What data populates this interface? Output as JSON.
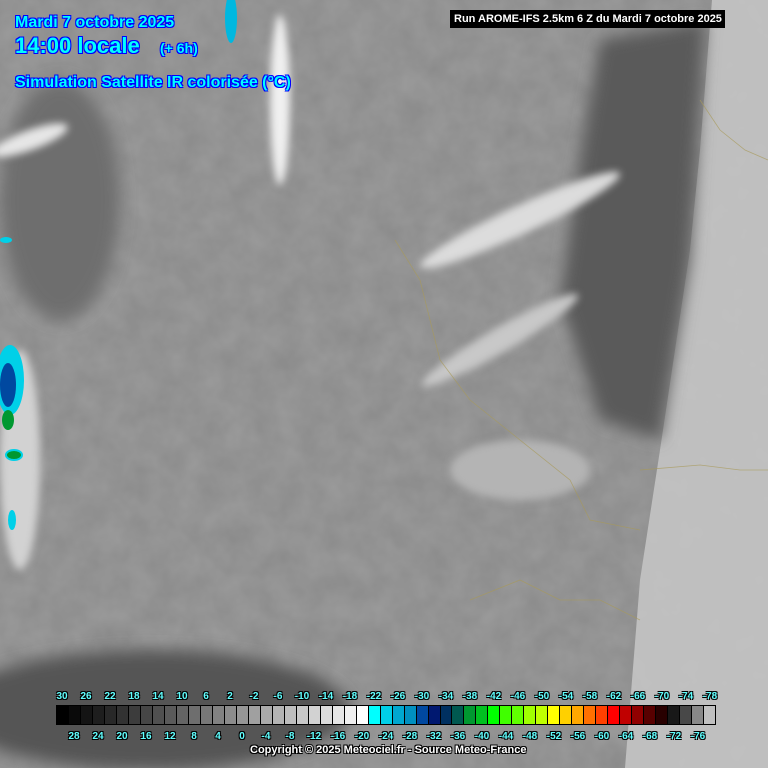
{
  "header": {
    "date": "Mardi 7 octobre 2025",
    "time": "14:00 locale",
    "offset": "(+ 6h)",
    "product": "Simulation Satellite IR colorisée (°C)",
    "run": "Run AROME-IFS 2.5km 6 Z du Mardi 7 octobre 2025"
  },
  "legend": {
    "top_labels": [
      "30",
      "26",
      "22",
      "18",
      "14",
      "10",
      "6",
      "2",
      "-2",
      "-6",
      "-10",
      "-14",
      "-18",
      "-22",
      "-26",
      "-30",
      "-34",
      "-38",
      "-42",
      "-46",
      "-50",
      "-54",
      "-58",
      "-62",
      "-66",
      "-70",
      "-74",
      "-78"
    ],
    "bottom_labels": [
      "28",
      "24",
      "20",
      "16",
      "12",
      "8",
      "4",
      "0",
      "-4",
      "-8",
      "-12",
      "-16",
      "-20",
      "-24",
      "-28",
      "-32",
      "-36",
      "-40",
      "-44",
      "-48",
      "-52",
      "-56",
      "-60",
      "-64",
      "-68",
      "-72",
      "-76"
    ],
    "colors": [
      "#000000",
      "#0a0a0a",
      "#141414",
      "#1e1e1e",
      "#282828",
      "#323232",
      "#3c3c3c",
      "#464646",
      "#505050",
      "#5a5a5a",
      "#646464",
      "#6e6e6e",
      "#787878",
      "#828282",
      "#8c8c8c",
      "#969696",
      "#a0a0a0",
      "#aaaaaa",
      "#b4b4b4",
      "#bebebe",
      "#c8c8c8",
      "#d2d2d2",
      "#dcdcdc",
      "#e6e6e6",
      "#f0f0f0",
      "#ffffff",
      "#00ffff",
      "#00d0e8",
      "#00a8d0",
      "#0090c0",
      "#0048a0",
      "#001870",
      "#003060",
      "#005850",
      "#009830",
      "#00c020",
      "#00ff00",
      "#40ff00",
      "#60ff00",
      "#a0ff00",
      "#c0ff00",
      "#ffff00",
      "#ffd000",
      "#ffa800",
      "#ff7000",
      "#ff4000",
      "#ff0000",
      "#c00000",
      "#900000",
      "#580000",
      "#280000",
      "#181818",
      "#484848",
      "#888888",
      "#c0c0c0"
    ]
  },
  "footer": {
    "copyright": "Copyright © 2025 Meteociel.fr - Source Meteo-France"
  }
}
